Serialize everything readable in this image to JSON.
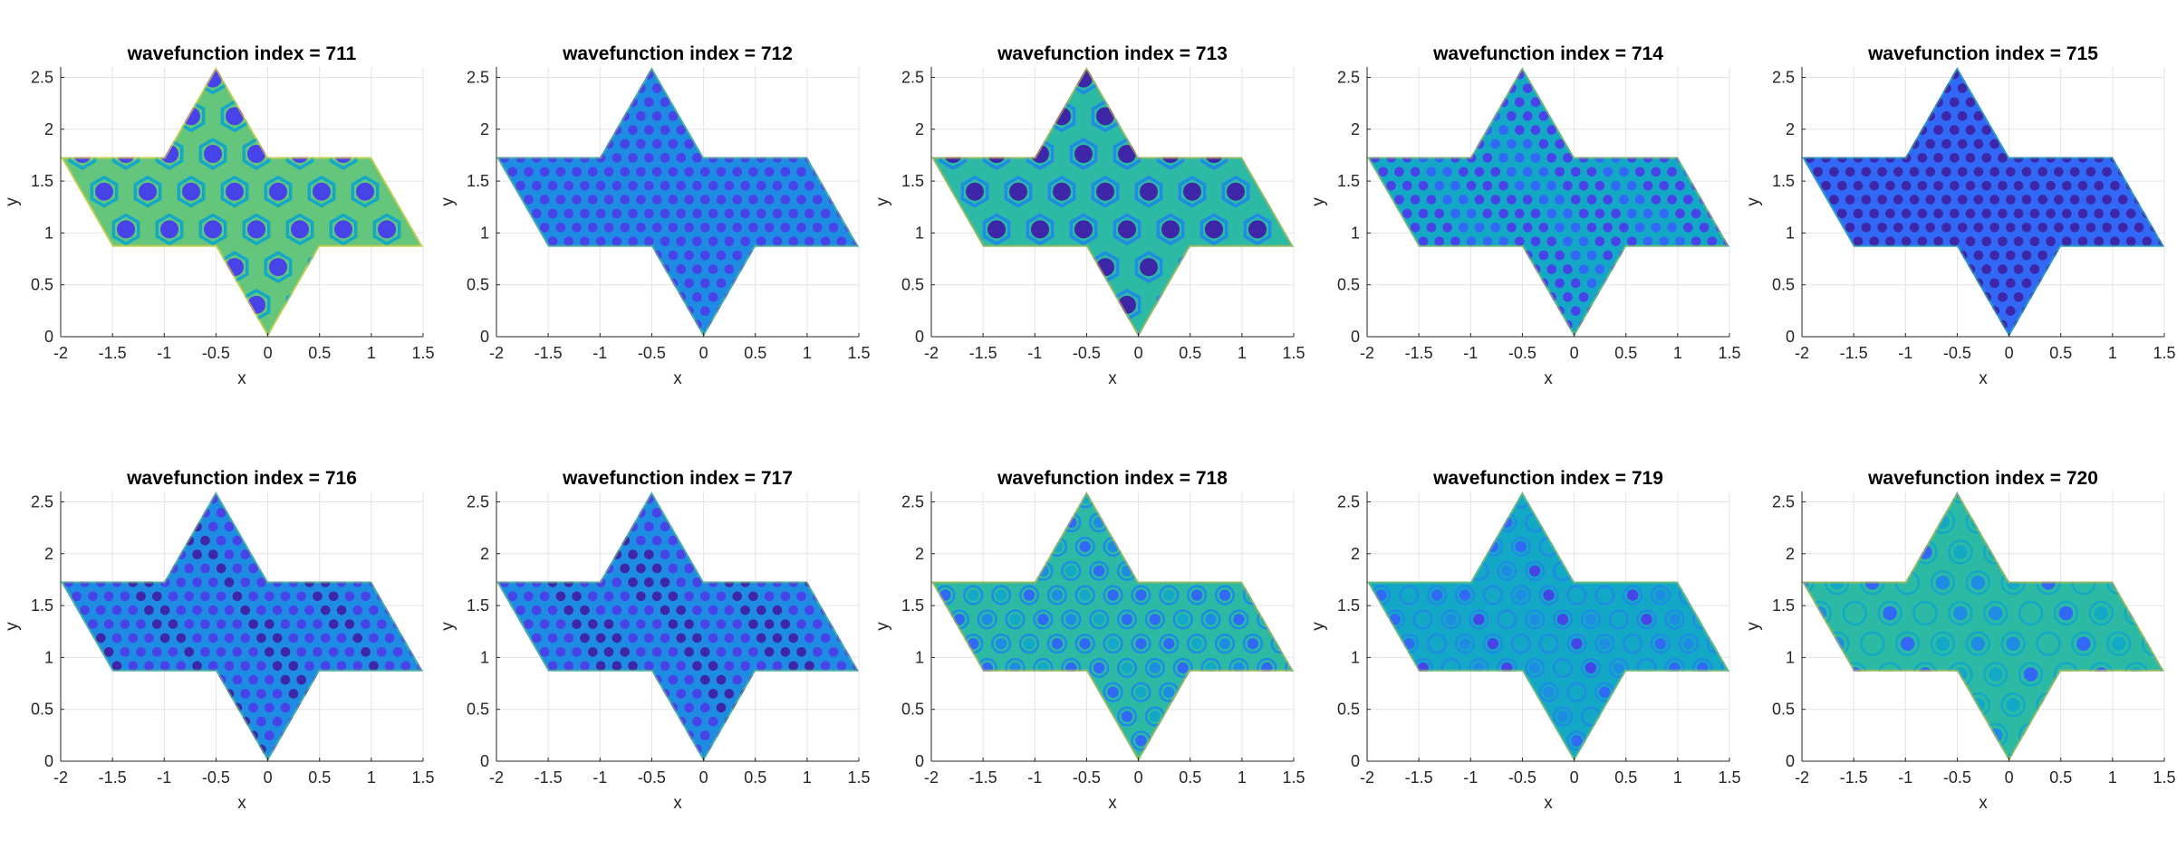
{
  "colors": {
    "grid": "#e3e3e3",
    "axis": "#262626",
    "colormap": [
      "#3e26a8",
      "#4743e8",
      "#3168f6",
      "#1e8ce2",
      "#13a8c6",
      "#2cbaa5",
      "#64c67c",
      "#a2c752",
      "#d6ba38",
      "#fbd435"
    ]
  },
  "chart_data": [
    {
      "type": "heatmap",
      "title": "wavefunction index = 711",
      "xlabel": "x",
      "ylabel": "y",
      "xlim": [
        -2,
        1.5
      ],
      "ylim": [
        0,
        2.6
      ],
      "xticks": [
        "-2",
        "-1.5",
        "-1",
        "-0.5",
        "0",
        "0.5",
        "1",
        "1.5"
      ],
      "yticks": [
        "0",
        "0.5",
        "1",
        "1.5",
        "2",
        "2.5"
      ],
      "grid": true,
      "pattern": "hexagonal rosette cells, yellow-green background",
      "mean_level": 0.66
    },
    {
      "type": "heatmap",
      "title": "wavefunction index = 712",
      "xlabel": "x",
      "ylabel": "y",
      "xlim": [
        -2,
        1.5
      ],
      "ylim": [
        0,
        2.6
      ],
      "xticks": [
        "-2",
        "-1.5",
        "-1",
        "-0.5",
        "0",
        "0.5",
        "1",
        "1.5"
      ],
      "yticks": [
        "0",
        "0.5",
        "1",
        "1.5",
        "2",
        "2.5"
      ],
      "grid": true,
      "pattern": "dense triangular lattice with star nodes",
      "mean_level": 0.38
    },
    {
      "type": "heatmap",
      "title": "wavefunction index = 713",
      "xlabel": "x",
      "ylabel": "y",
      "xlim": [
        -2,
        1.5
      ],
      "ylim": [
        0,
        2.6
      ],
      "xticks": [
        "-2",
        "-1.5",
        "-1",
        "-0.5",
        "0",
        "0.5",
        "1",
        "1.5"
      ],
      "yticks": [
        "0",
        "0.5",
        "1",
        "1.5",
        "2",
        "2.5"
      ],
      "grid": true,
      "pattern": "hexagonal rosette cells",
      "mean_level": 0.5
    },
    {
      "type": "heatmap",
      "title": "wavefunction index = 714",
      "xlabel": "x",
      "ylabel": "y",
      "xlim": [
        -2,
        1.5
      ],
      "ylim": [
        0,
        2.6
      ],
      "xticks": [
        "-2",
        "-1.5",
        "-1",
        "-0.5",
        "0",
        "0.5",
        "1",
        "1.5"
      ],
      "yticks": [
        "0",
        "0.5",
        "1",
        "1.5",
        "2",
        "2.5"
      ],
      "grid": true,
      "pattern": "dense triangular lattice with star nodes",
      "mean_level": 0.42
    },
    {
      "type": "heatmap",
      "title": "wavefunction index = 715",
      "xlabel": "x",
      "ylabel": "y",
      "xlim": [
        -2,
        1.5
      ],
      "ylim": [
        0,
        2.6
      ],
      "xticks": [
        "-2",
        "-1.5",
        "-1",
        "-0.5",
        "0",
        "0.5",
        "1",
        "1.5"
      ],
      "yticks": [
        "0",
        "0.5",
        "1",
        "1.5",
        "2",
        "2.5"
      ],
      "grid": true,
      "pattern": "large hexagonal domains, deep blue",
      "mean_level": 0.2
    },
    {
      "type": "heatmap",
      "title": "wavefunction index = 716",
      "xlabel": "x",
      "ylabel": "y",
      "xlim": [
        -2,
        1.5
      ],
      "ylim": [
        0,
        2.6
      ],
      "xticks": [
        "-2",
        "-1.5",
        "-1",
        "-0.5",
        "0",
        "0.5",
        "1",
        "1.5"
      ],
      "yticks": [
        "0",
        "0.5",
        "1",
        "1.5",
        "2",
        "2.5"
      ],
      "grid": true,
      "pattern": "large hexagonal domains with dot lattice",
      "mean_level": 0.36
    },
    {
      "type": "heatmap",
      "title": "wavefunction index = 717",
      "xlabel": "x",
      "ylabel": "y",
      "xlim": [
        -2,
        1.5
      ],
      "ylim": [
        0,
        2.6
      ],
      "xticks": [
        "-2",
        "-1.5",
        "-1",
        "-0.5",
        "0",
        "0.5",
        "1",
        "1.5"
      ],
      "yticks": [
        "0",
        "0.5",
        "1",
        "1.5",
        "2",
        "2.5"
      ],
      "grid": true,
      "pattern": "dense triangular lattice with star nodes",
      "mean_level": 0.34
    },
    {
      "type": "heatmap",
      "title": "wavefunction index = 718",
      "xlabel": "x",
      "ylabel": "y",
      "xlim": [
        -2,
        1.5
      ],
      "ylim": [
        0,
        2.6
      ],
      "xticks": [
        "-2",
        "-1.5",
        "-1",
        "-0.5",
        "0",
        "0.5",
        "1",
        "1.5"
      ],
      "yticks": [
        "0",
        "0.5",
        "1",
        "1.5",
        "2",
        "2.5"
      ],
      "grid": true,
      "pattern": "concentric ring rosettes",
      "mean_level": 0.5
    },
    {
      "type": "heatmap",
      "title": "wavefunction index = 719",
      "xlabel": "x",
      "ylabel": "y",
      "xlim": [
        -2,
        1.5
      ],
      "ylim": [
        0,
        2.6
      ],
      "xticks": [
        "-2",
        "-1.5",
        "-1",
        "-0.5",
        "0",
        "0.5",
        "1",
        "1.5"
      ],
      "yticks": [
        "0",
        "0.5",
        "1",
        "1.5",
        "2",
        "2.5"
      ],
      "grid": true,
      "pattern": "concentric ring rosettes",
      "mean_level": 0.48
    },
    {
      "type": "heatmap",
      "title": "wavefunction index = 720",
      "xlabel": "x",
      "ylabel": "y",
      "xlim": [
        -2,
        1.5
      ],
      "ylim": [
        0,
        2.6
      ],
      "xticks": [
        "-2",
        "-1.5",
        "-1",
        "-0.5",
        "0",
        "0.5",
        "1",
        "1.5"
      ],
      "yticks": [
        "0",
        "0.5",
        "1",
        "1.5",
        "2",
        "2.5"
      ],
      "grid": true,
      "pattern": "sparse concentric rings",
      "mean_level": 0.54
    }
  ]
}
